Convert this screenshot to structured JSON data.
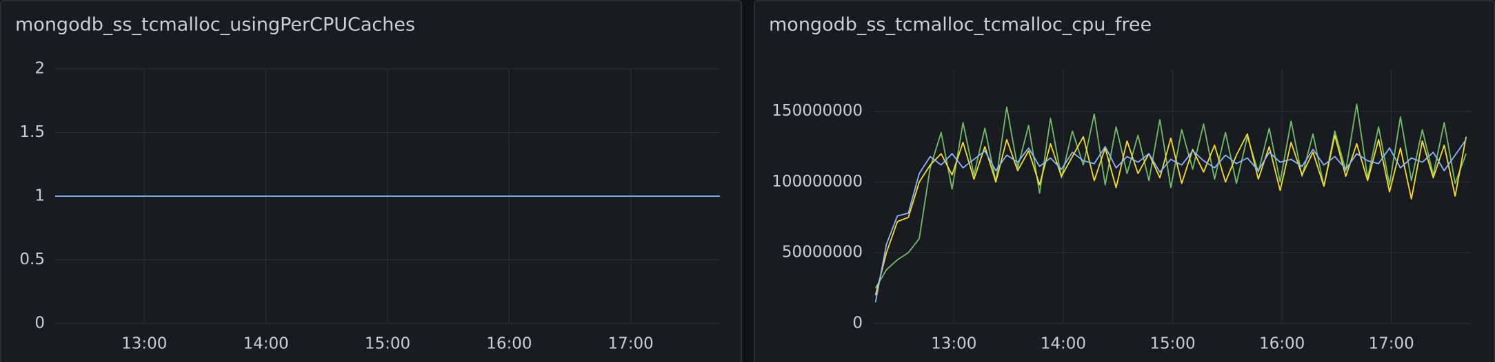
{
  "chart_data": [
    {
      "type": "line",
      "title": "mongodb_ss_tcmalloc_usingPerCPUCaches",
      "x": [
        736,
        1064
      ],
      "series": [
        {
          "color": "#8ab8ff",
          "values": [
            1,
            1
          ]
        }
      ],
      "xlim": [
        736,
        1064
      ],
      "xticks": [
        {
          "value": 780,
          "label": "13:00"
        },
        {
          "value": 840,
          "label": "14:00"
        },
        {
          "value": 900,
          "label": "15:00"
        },
        {
          "value": 960,
          "label": "16:00"
        },
        {
          "value": 1020,
          "label": "17:00"
        }
      ],
      "ylim": [
        0,
        2
      ],
      "yticks": [
        0,
        0.5,
        1,
        1.5,
        2
      ],
      "grid": true
    },
    {
      "type": "line",
      "title": "mongodb_ss_tcmalloc_tcmalloc_cpu_free",
      "x": [
        737,
        743,
        749,
        755,
        761,
        767,
        773,
        779,
        785,
        791,
        797,
        803,
        809,
        815,
        821,
        827,
        833,
        839,
        845,
        851,
        857,
        863,
        869,
        875,
        881,
        887,
        893,
        899,
        905,
        911,
        917,
        923,
        929,
        935,
        941,
        947,
        953,
        959,
        965,
        971,
        977,
        983,
        989,
        995,
        1001,
        1007,
        1013,
        1019,
        1025,
        1031,
        1037,
        1043,
        1049,
        1055,
        1061
      ],
      "series": [
        {
          "color": "#73bf69",
          "values": [
            25000000.0,
            38000000.0,
            45000000.0,
            50000000.0,
            60000000.0,
            110000000.0,
            135000000.0,
            95000000.0,
            142000000.0,
            105000000.0,
            138000000.0,
            100000000.0,
            153000000.0,
            110000000.0,
            140000000.0,
            92000000.0,
            145000000.0,
            103000000.0,
            136000000.0,
            112000000.0,
            148000000.0,
            98000000.0,
            139000000.0,
            106000000.0,
            133000000.0,
            101000000.0,
            144000000.0,
            96000000.0,
            137000000.0,
            109000000.0,
            141000000.0,
            102000000.0,
            135000000.0,
            99000000.0,
            132000000.0,
            107000000.0,
            138000000.0,
            100000000.0,
            143000000.0,
            104000000.0,
            134000000.0,
            97000000.0,
            136000000.0,
            108000000.0,
            155000000.0,
            103000000.0,
            139000000.0,
            98000000.0,
            146000000.0,
            101000000.0,
            137000000.0,
            105000000.0,
            142000000.0,
            99000000.0,
            120000000.0
          ]
        },
        {
          "color": "#fade2a",
          "values": [
            20000000.0,
            50000000.0,
            72000000.0,
            75000000.0,
            100000000.0,
            112000000.0,
            120000000.0,
            105000000.0,
            128000000.0,
            102000000.0,
            125000000.0,
            100000000.0,
            130000000.0,
            108000000.0,
            122000000.0,
            98000000.0,
            127000000.0,
            104000000.0,
            118000000.0,
            132000000.0,
            101000000.0,
            124000000.0,
            96000000.0,
            129000000.0,
            106000000.0,
            120000000.0,
            103000000.0,
            131000000.0,
            99000000.0,
            123000000.0,
            107000000.0,
            126000000.0,
            100000000.0,
            119000000.0,
            134000000.0,
            102000000.0,
            125000000.0,
            94000000.0,
            128000000.0,
            105000000.0,
            121000000.0,
            97000000.0,
            133000000.0,
            104000000.0,
            127000000.0,
            101000000.0,
            130000000.0,
            93000000.0,
            124000000.0,
            88000000.0,
            129000000.0,
            103000000.0,
            126000000.0,
            90000000.0,
            132000000.0
          ]
        },
        {
          "color": "#8ab8ff",
          "values": [
            15000000.0,
            56000000.0,
            76000000.0,
            78000000.0,
            106000000.0,
            118000000.0,
            112000000.0,
            120000000.0,
            110000000.0,
            116000000.0,
            122000000.0,
            108000000.0,
            119000000.0,
            114000000.0,
            124000000.0,
            111000000.0,
            117000000.0,
            109000000.0,
            121000000.0,
            115000000.0,
            113000000.0,
            125000000.0,
            110000000.0,
            118000000.0,
            114000000.0,
            120000000.0,
            107000000.0,
            116000000.0,
            112000000.0,
            122000000.0,
            115000000.0,
            110000000.0,
            119000000.0,
            113000000.0,
            117000000.0,
            108000000.0,
            121000000.0,
            114000000.0,
            116000000.0,
            111000000.0,
            123000000.0,
            112000000.0,
            118000000.0,
            109000000.0,
            120000000.0,
            115000000.0,
            113000000.0,
            124000000.0,
            110000000.0,
            117000000.0,
            114000000.0,
            121000000.0,
            108000000.0,
            119000000.0,
            130000000.0
          ]
        }
      ],
      "xlim": [
        736,
        1064
      ],
      "xticks": [
        {
          "value": 780,
          "label": "13:00"
        },
        {
          "value": 840,
          "label": "14:00"
        },
        {
          "value": 900,
          "label": "15:00"
        },
        {
          "value": 960,
          "label": "16:00"
        },
        {
          "value": 1020,
          "label": "17:00"
        }
      ],
      "ylim": [
        0,
        180000000
      ],
      "yticks": [
        0,
        50000000,
        100000000,
        150000000
      ],
      "grid": true
    }
  ]
}
